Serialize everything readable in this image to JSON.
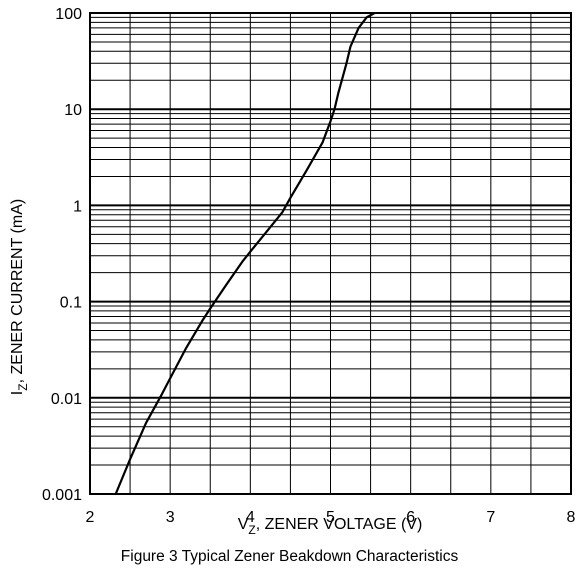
{
  "chart_data": {
    "type": "line",
    "caption": "Figure 3 Typical Zener Beakdown Characteristics",
    "xlabel": {
      "main": "V",
      "sub": "Z",
      "rest": ", ZENER VOLTAGE (V)"
    },
    "ylabel": {
      "main": "I",
      "sub": "Z",
      "rest": ", ZENER CURRENT (mA)"
    },
    "xlim": [
      2,
      8
    ],
    "ylim": [
      0.001,
      100
    ],
    "yscale": "log",
    "x_ticks": [
      "2",
      "3",
      "4",
      "5",
      "6",
      "7",
      "8"
    ],
    "y_ticks": [
      "0.001",
      "0.01",
      "0.1",
      "1",
      "10",
      "100"
    ],
    "grid": true,
    "series": [
      {
        "x": [
          2.32,
          2.5,
          2.7,
          2.9,
          3.0,
          3.2,
          3.4,
          3.5,
          3.7,
          3.9,
          4.0,
          4.2,
          4.4,
          4.5,
          4.7,
          4.9,
          5.0,
          5.05,
          5.1,
          5.2,
          5.25,
          5.35,
          5.45,
          5.55
        ],
        "y": [
          0.001,
          0.0023,
          0.0055,
          0.011,
          0.016,
          0.033,
          0.063,
          0.085,
          0.15,
          0.26,
          0.33,
          0.53,
          0.85,
          1.2,
          2.3,
          4.5,
          7.5,
          10,
          15,
          30,
          45,
          70,
          90,
          100
        ]
      }
    ]
  }
}
